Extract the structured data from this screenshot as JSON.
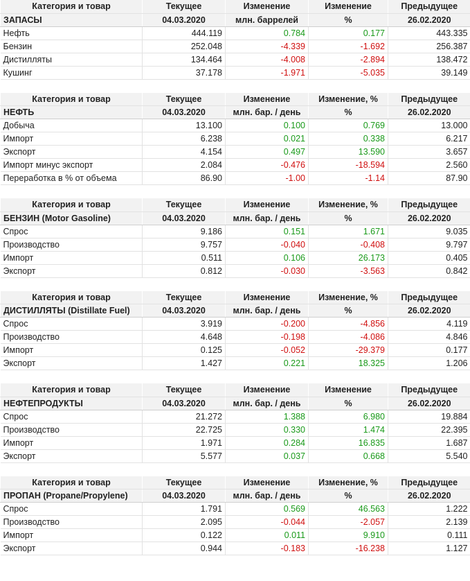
{
  "tables": [
    {
      "header": [
        "Категория и товар",
        "Текущее",
        "Изменение",
        "Изменение",
        "Предыдущее"
      ],
      "subheader": [
        "ЗАПАСЫ",
        "04.03.2020",
        "млн. баррелей",
        "%",
        "26.02.2020"
      ],
      "rows": [
        [
          "Нефть",
          "444.119",
          "0.784",
          "0.177",
          "443.335"
        ],
        [
          "Бензин",
          "252.048",
          "-4.339",
          "-1.692",
          "256.387"
        ],
        [
          "Дистилляты",
          "134.464",
          "-4.008",
          "-2.894",
          "138.472"
        ],
        [
          "Кушинг",
          "37.178",
          "-1.971",
          "-5.035",
          "39.149"
        ]
      ]
    },
    {
      "header": [
        "Категория и товар",
        "Текущее",
        "Изменение",
        "Изменение, %",
        "Предыдущее"
      ],
      "subheader": [
        "НЕФТЬ",
        "04.03.2020",
        "млн. бар. / день",
        "%",
        "26.02.2020"
      ],
      "rows": [
        [
          "Добыча",
          "13.100",
          "0.100",
          "0.769",
          "13.000"
        ],
        [
          "Импорт",
          "6.238",
          "0.021",
          "0.338",
          "6.217"
        ],
        [
          "Экспорт",
          "4.154",
          "0.497",
          "13.590",
          "3.657"
        ],
        [
          "Импорт минус экспорт",
          "2.084",
          "-0.476",
          "-18.594",
          "2.560"
        ],
        [
          "Переработка в % от объема",
          "86.90",
          "-1.00",
          "-1.14",
          "87.90"
        ]
      ]
    },
    {
      "header": [
        "Категория и товар",
        "Текущее",
        "Изменение",
        "Изменение, %",
        "Предыдущее"
      ],
      "subheader": [
        "БЕНЗИН (Motor Gasoline)",
        "04.03.2020",
        "млн. бар. / день",
        "%",
        "26.02.2020"
      ],
      "rows": [
        [
          "Спрос",
          "9.186",
          "0.151",
          "1.671",
          "9.035"
        ],
        [
          "Производство",
          "9.757",
          "-0.040",
          "-0.408",
          "9.797"
        ],
        [
          "Импорт",
          "0.511",
          "0.106",
          "26.173",
          "0.405"
        ],
        [
          "Экспорт",
          "0.812",
          "-0.030",
          "-3.563",
          "0.842"
        ]
      ]
    },
    {
      "header": [
        "Категория и товар",
        "Текущее",
        "Изменение",
        "Изменение, %",
        "Предыдущее"
      ],
      "subheader": [
        "ДИСТИЛЛЯТЫ (Distillate Fuel)",
        "04.03.2020",
        "млн. бар. / день",
        "%",
        "26.02.2020"
      ],
      "rows": [
        [
          "Спрос",
          "3.919",
          "-0.200",
          "-4.856",
          "4.119"
        ],
        [
          "Производство",
          "4.648",
          "-0.198",
          "-4.086",
          "4.846"
        ],
        [
          "Импорт",
          "0.125",
          "-0.052",
          "-29.379",
          "0.177"
        ],
        [
          "Экспорт",
          "1.427",
          "0.221",
          "18.325",
          "1.206"
        ]
      ]
    },
    {
      "header": [
        "Категория и товар",
        "Текущее",
        "Изменение",
        "Изменение",
        "Предыдущее"
      ],
      "subheader": [
        "НЕФТЕПРОДУКТЫ",
        "04.03.2020",
        "млн. бар. / день",
        "%",
        "26.02.2020"
      ],
      "rows": [
        [
          "Спрос",
          "21.272",
          "1.388",
          "6.980",
          "19.884"
        ],
        [
          "Производство",
          "22.725",
          "0.330",
          "1.474",
          "22.395"
        ],
        [
          "Импорт",
          "1.971",
          "0.284",
          "16.835",
          "1.687"
        ],
        [
          "Экспорт",
          "5.577",
          "0.037",
          "0.668",
          "5.540"
        ]
      ]
    },
    {
      "header": [
        "Категория и товар",
        "Текущее",
        "Изменение",
        "Изменение, %",
        "Предыдущее"
      ],
      "subheader": [
        "ПРОПАН (Propane/Propylene)",
        "04.03.2020",
        "млн. бар. / день",
        "%",
        "26.02.2020"
      ],
      "rows": [
        [
          "Спрос",
          "1.791",
          "0.569",
          "46.563",
          "1.222"
        ],
        [
          "Производство",
          "2.095",
          "-0.044",
          "-2.057",
          "2.139"
        ],
        [
          "Импорт",
          "0.122",
          "0.011",
          "9.910",
          "0.111"
        ],
        [
          "Экспорт",
          "0.944",
          "-0.183",
          "-16.238",
          "1.127"
        ]
      ]
    }
  ]
}
